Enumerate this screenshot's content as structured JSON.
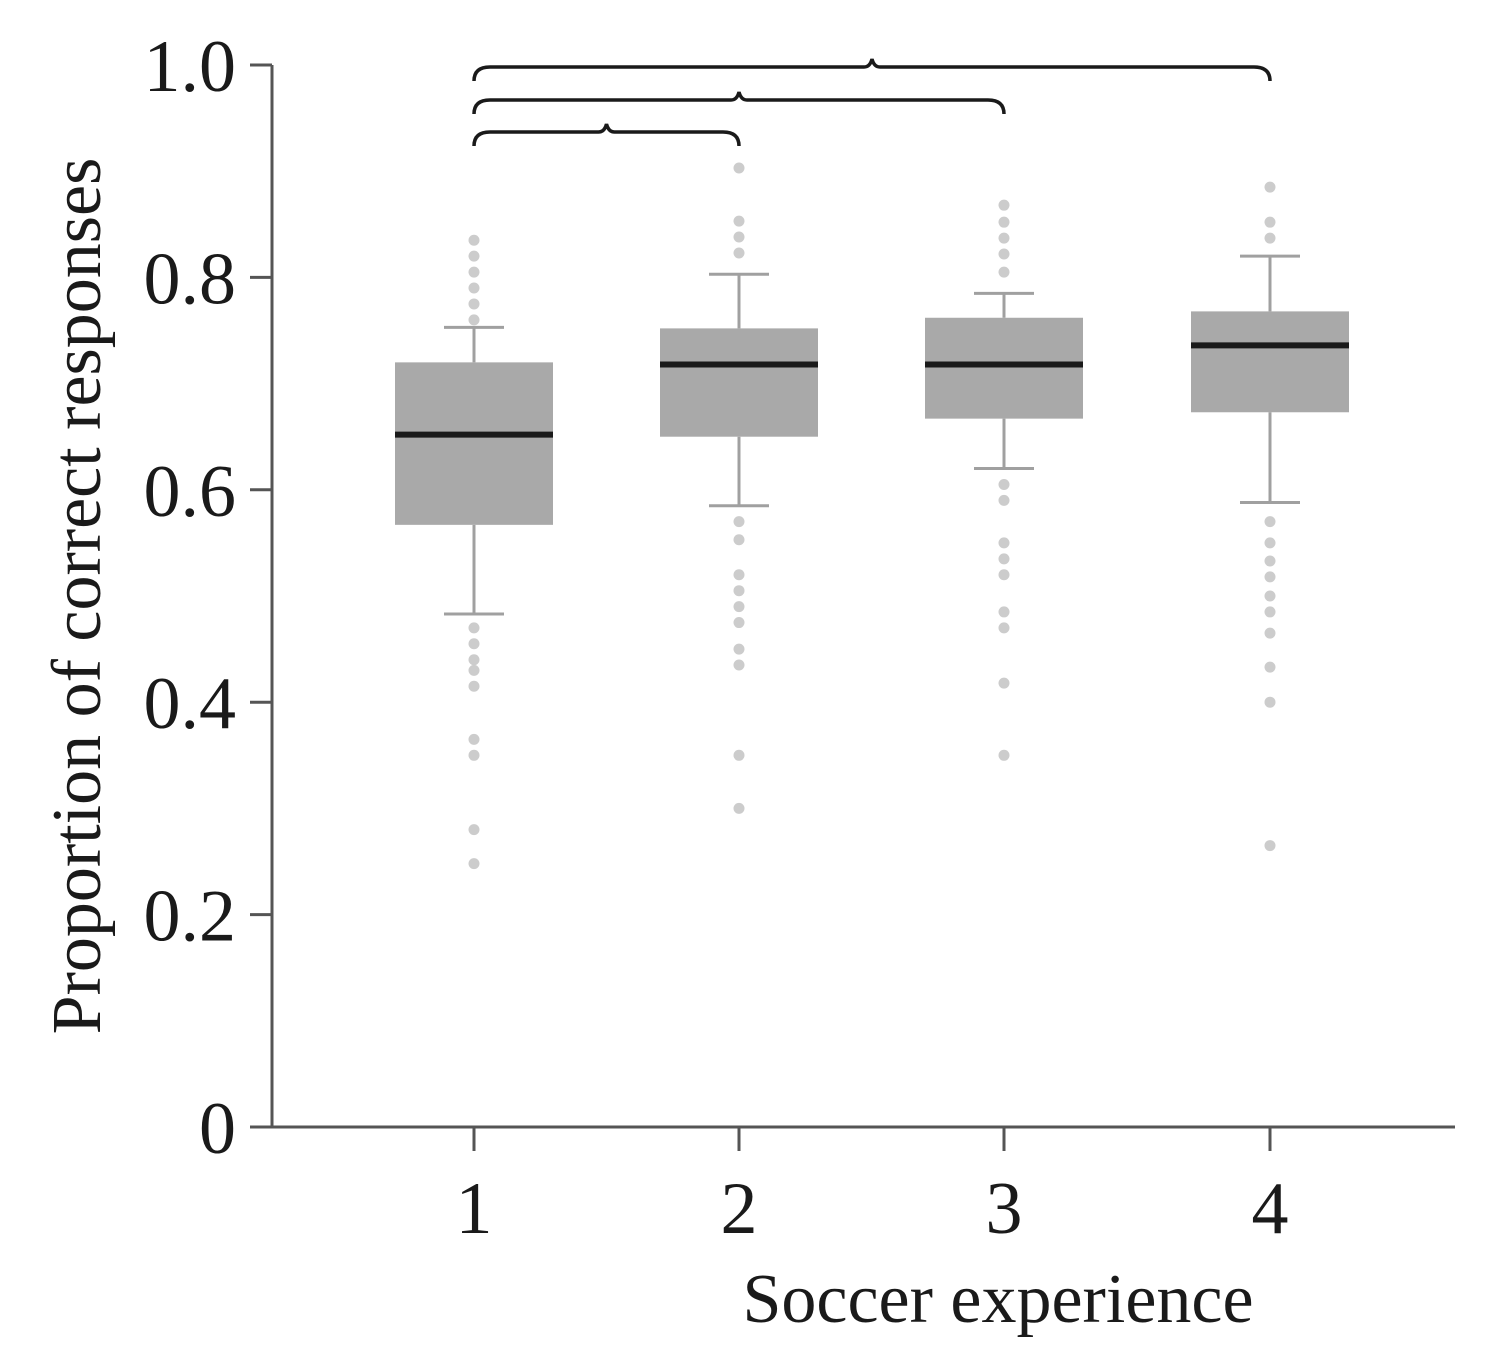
{
  "chart_data": {
    "type": "box",
    "xlabel": "Soccer experience",
    "ylabel": "Proportion of correct responses",
    "categories": [
      "1",
      "2",
      "3",
      "4"
    ],
    "ylim": [
      0,
      1.0
    ],
    "yticks": [
      "0",
      "0.2",
      "0.4",
      "0.6",
      "0.8",
      "1.0"
    ],
    "ytick_values": [
      0,
      0.2,
      0.4,
      0.6,
      0.8,
      1.0
    ],
    "grid": false,
    "legend": "none",
    "boxes": [
      {
        "category": "1",
        "whisker_low": 0.483,
        "q1": 0.567,
        "median": 0.652,
        "q3": 0.72,
        "whisker_high": 0.753,
        "outliers": [
          0.835,
          0.82,
          0.805,
          0.79,
          0.775,
          0.76,
          0.47,
          0.455,
          0.44,
          0.43,
          0.415,
          0.365,
          0.35,
          0.28,
          0.248
        ]
      },
      {
        "category": "2",
        "whisker_low": 0.585,
        "q1": 0.65,
        "median": 0.718,
        "q3": 0.752,
        "whisker_high": 0.803,
        "outliers": [
          0.903,
          0.853,
          0.838,
          0.823,
          0.57,
          0.553,
          0.52,
          0.505,
          0.49,
          0.475,
          0.45,
          0.435,
          0.35,
          0.3
        ]
      },
      {
        "category": "3",
        "whisker_low": 0.62,
        "q1": 0.667,
        "median": 0.718,
        "q3": 0.762,
        "whisker_high": 0.785,
        "outliers": [
          0.868,
          0.852,
          0.837,
          0.822,
          0.805,
          0.605,
          0.59,
          0.55,
          0.535,
          0.52,
          0.485,
          0.47,
          0.418,
          0.35
        ]
      },
      {
        "category": "4",
        "whisker_low": 0.588,
        "q1": 0.673,
        "median": 0.736,
        "q3": 0.768,
        "whisker_high": 0.82,
        "outliers": [
          0.885,
          0.852,
          0.837,
          0.57,
          0.55,
          0.533,
          0.518,
          0.5,
          0.485,
          0.465,
          0.433,
          0.4,
          0.265
        ]
      }
    ],
    "significance_brackets": [
      {
        "from": "1",
        "to": "2"
      },
      {
        "from": "1",
        "to": "3"
      },
      {
        "from": "1",
        "to": "4"
      }
    ],
    "colors": {
      "box_fill": "#a9a9a9",
      "median": "#1a1a1a",
      "whisker": "#a0a0a0",
      "outlier": "#cccccc",
      "axis": "#555555",
      "bracket": "#1a1a1a"
    }
  }
}
